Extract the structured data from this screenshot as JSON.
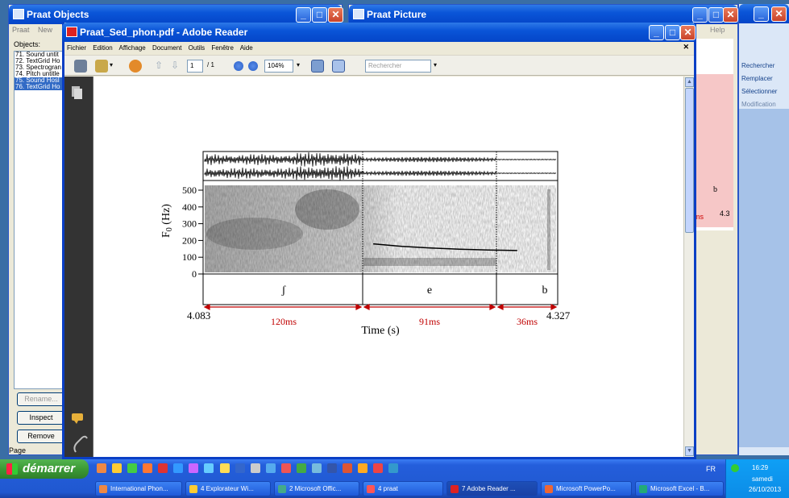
{
  "praat_objects": {
    "title": "Praat Objects",
    "menu": [
      "Praat",
      "New"
    ],
    "objects_label": "Objects:",
    "items": [
      {
        "text": "71. Sound untit",
        "selected": false
      },
      {
        "text": "72. TextGrid Ho",
        "selected": false
      },
      {
        "text": "73. Spectrogran",
        "selected": false
      },
      {
        "text": "74. Pitch untitle",
        "selected": false
      },
      {
        "text": "75. Sound Hosl",
        "selected": true
      },
      {
        "text": "76. TextGrid Ho",
        "selected": true
      }
    ],
    "buttons": {
      "rename": "Rename...",
      "inspect": "Inspect",
      "remove": "Remove"
    },
    "page_label": "Page"
  },
  "praat_picture": {
    "title": "Praat Picture",
    "help": "Help",
    "tier_label": "b",
    "ms_label": "ms",
    "end_fragment": "4.3"
  },
  "office_pane": {
    "items": [
      "Rechercher",
      "Remplacer",
      "Sélectionner",
      "Modification"
    ]
  },
  "reader": {
    "title": "Praat_Sed_phon.pdf - Adobe Reader",
    "menu": [
      "Fichier",
      "Edition",
      "Affichage",
      "Document",
      "Outils",
      "Fenêtre",
      "Aide"
    ],
    "page_current": "1",
    "page_total": "/ 1",
    "zoom": "104%",
    "search_placeholder": "Rechercher"
  },
  "figure": {
    "y_axis_label": "F",
    "y_axis_sub": "0",
    "y_axis_unit": " (Hz)",
    "y_ticks": [
      "500",
      "400",
      "300",
      "200",
      "100",
      "0"
    ],
    "segments": [
      "ʃ",
      "e",
      "b"
    ],
    "start_time": "4.083",
    "end_time": "4.327",
    "durations": [
      "120ms",
      "91ms",
      "36ms"
    ],
    "x_axis_label": "Time (s)",
    "duration_color": "#c00000"
  },
  "chart_data": {
    "type": "line",
    "x": [
      4.2,
      4.22,
      4.24,
      4.26,
      4.28,
      4.3
    ],
    "series": [
      {
        "values": [
          180,
          165,
          155,
          148,
          143,
          140
        ]
      }
    ],
    "xlabel": "Time (s)",
    "ylabel": "F0 (Hz)",
    "xlim": [
      4.083,
      4.327
    ],
    "ylim": [
      0,
      500
    ]
  },
  "taskbar": {
    "start_label": "démarrer",
    "tasks": [
      {
        "label": "International Phon...",
        "active": false
      },
      {
        "label": "4 Explorateur Wi...",
        "active": false
      },
      {
        "label": "2 Microsoft Offic...",
        "active": false
      },
      {
        "label": "4 praat",
        "active": false
      },
      {
        "label": "7 Adobe Reader ...",
        "active": true
      },
      {
        "label": "Microsoft PowerPo...",
        "active": false
      },
      {
        "label": "Microsoft Excel - B...",
        "active": false
      }
    ],
    "language": "FR",
    "time": "16:29",
    "day": "samedi",
    "date": "26/10/2013"
  }
}
